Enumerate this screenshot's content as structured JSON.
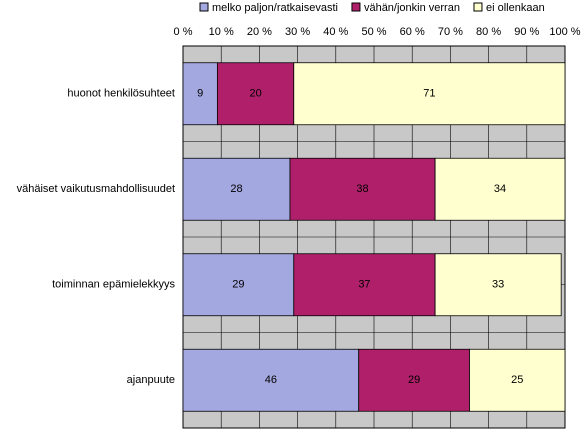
{
  "chart_data": {
    "type": "stacked-barh",
    "categories": [
      "huonot henkilösuhteet",
      "vähäiset vaikutusmahdollisuudet",
      "toiminnan epämielekkyys",
      "ajanpuute"
    ],
    "series": [
      {
        "name": "melko paljon/ratkaisevasti",
        "color": "#a4a8e0",
        "values": [
          9,
          28,
          29,
          46
        ]
      },
      {
        "name": "vähän/jonkin verran",
        "color": "#b0206a",
        "values": [
          20,
          38,
          37,
          29
        ]
      },
      {
        "name": "ei ollenkaan",
        "color": "#ffffd0",
        "values": [
          71,
          34,
          33,
          25
        ]
      }
    ],
    "xlim": [
      0,
      100
    ],
    "xticks": [
      {
        "value": 0,
        "label": "0 %"
      },
      {
        "value": 10,
        "label": "10 %"
      },
      {
        "value": 20,
        "label": "20 %"
      },
      {
        "value": 30,
        "label": "30 %"
      },
      {
        "value": 40,
        "label": "40 %"
      },
      {
        "value": 50,
        "label": "50 %"
      },
      {
        "value": 60,
        "label": "60 %"
      },
      {
        "value": 70,
        "label": "70 %"
      },
      {
        "value": 80,
        "label": "80 %"
      },
      {
        "value": 90,
        "label": "90 %"
      },
      {
        "value": 100,
        "label": "100 %"
      }
    ],
    "grid": true
  }
}
